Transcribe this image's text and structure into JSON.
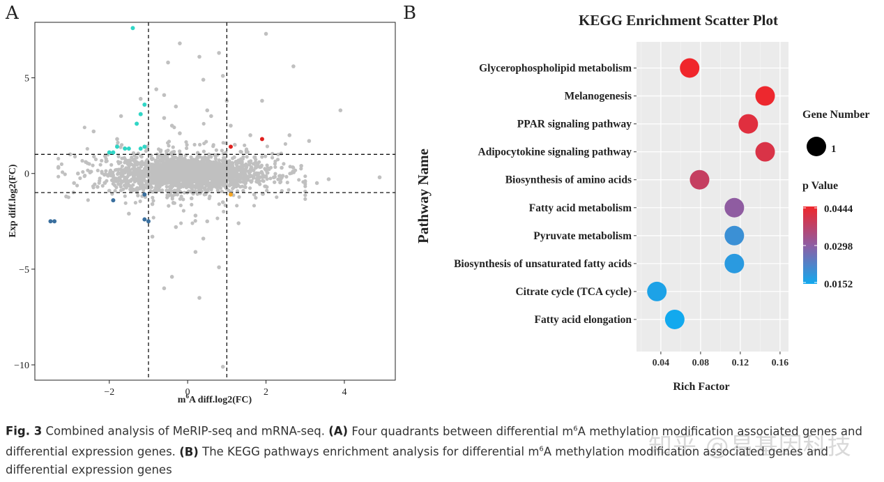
{
  "panel_a_letter": "A",
  "panel_b_letter": "B",
  "chart_data": [
    {
      "type": "scatter",
      "title": "",
      "xlabel_pre": "m",
      "xlabel_sup": "6",
      "xlabel_post": "A diff.log2(FC)",
      "ylabel": "Exp diff.log2(FC)",
      "xlim": [
        -3.9,
        5.3
      ],
      "ylim": [
        -10.8,
        7.9
      ],
      "xticks": [
        -2,
        0,
        2,
        4
      ],
      "yticks": [
        5,
        0,
        -5,
        -10
      ],
      "xtick_labels": [
        "−2",
        "0",
        "2",
        "4"
      ],
      "ytick_labels": [
        "5",
        "0",
        "−5",
        "−10"
      ],
      "thresholds": {
        "x": [
          -1,
          1
        ],
        "y": [
          -1,
          1
        ]
      },
      "colors": {
        "background": "#c0c0c0",
        "up_hypo": "#30d6c6",
        "down_hypo": "#3a6f9e",
        "up_hyper": "#e0201e",
        "down_hyper": "#f5a623"
      },
      "background_points": [
        [
          -0.2,
          6.8
        ],
        [
          0.3,
          6.1
        ],
        [
          -0.5,
          5.8
        ],
        [
          0.8,
          6.3
        ],
        [
          2.0,
          7.3
        ],
        [
          2.7,
          5.6
        ],
        [
          3.9,
          3.3
        ],
        [
          2.6,
          2.0
        ],
        [
          3.1,
          1.7
        ],
        [
          -2.4,
          2.2
        ],
        [
          1.9,
          3.8
        ],
        [
          1.0,
          3.8
        ],
        [
          -1.2,
          3.9
        ],
        [
          -0.8,
          4.4
        ],
        [
          0.4,
          4.9
        ],
        [
          -0.6,
          4.1
        ],
        [
          0.9,
          5.1
        ],
        [
          -1.7,
          3.0
        ],
        [
          0.2,
          -2.2
        ],
        [
          -0.3,
          -2.8
        ],
        [
          0.4,
          -3.4
        ],
        [
          -0.9,
          -3.3
        ],
        [
          0.2,
          -4.1
        ],
        [
          -0.4,
          -5.4
        ],
        [
          0.8,
          -4.9
        ],
        [
          -0.6,
          -6.0
        ],
        [
          0.3,
          -6.5
        ],
        [
          0.9,
          -10.1
        ],
        [
          1.3,
          -2.6
        ],
        [
          -1.5,
          -2.1
        ],
        [
          -3.1,
          -1.2
        ],
        [
          -3.0,
          1.0
        ],
        [
          -2.9,
          -0.5
        ],
        [
          3.3,
          -0.5
        ],
        [
          4.9,
          -0.2
        ],
        [
          3.6,
          -0.3
        ],
        [
          -3.3,
          0.3
        ],
        [
          2.9,
          0.4
        ],
        [
          -2.0,
          -0.9
        ],
        [
          1.7,
          -1.1
        ],
        [
          -2.6,
          0.6
        ],
        [
          1.5,
          1.2
        ],
        [
          0.6,
          3.0
        ],
        [
          -0.4,
          2.5
        ],
        [
          0.5,
          -2.5
        ],
        [
          -0.9,
          -1.6
        ],
        [
          0.9,
          -1.5
        ],
        [
          -1.8,
          1.8
        ],
        [
          1.1,
          2.5
        ],
        [
          -0.3,
          3.5
        ],
        [
          0.5,
          3.3
        ],
        [
          -0.6,
          2.9
        ],
        [
          2.2,
          -0.2
        ],
        [
          -2.3,
          -0.7
        ],
        [
          0.1,
          -1.3
        ],
        [
          -0.2,
          2.1
        ],
        [
          1.8,
          -0.4
        ],
        [
          2.4,
          0.3
        ],
        [
          -2.8,
          0.0
        ],
        [
          1.6,
          2.0
        ]
      ],
      "highlight_points": [
        {
          "x": -1.4,
          "y": 7.6,
          "group": "up_hypo"
        },
        {
          "x": -1.1,
          "y": 3.6,
          "group": "up_hypo"
        },
        {
          "x": -1.2,
          "y": 3.1,
          "group": "up_hypo"
        },
        {
          "x": -1.3,
          "y": 2.6,
          "group": "up_hypo"
        },
        {
          "x": -1.8,
          "y": 1.4,
          "group": "up_hypo"
        },
        {
          "x": -1.6,
          "y": 1.3,
          "group": "up_hypo"
        },
        {
          "x": -1.5,
          "y": 1.3,
          "group": "up_hypo"
        },
        {
          "x": -1.2,
          "y": 1.3,
          "group": "up_hypo"
        },
        {
          "x": -1.1,
          "y": 1.4,
          "group": "up_hypo"
        },
        {
          "x": -1.9,
          "y": 1.1,
          "group": "up_hypo"
        },
        {
          "x": -2.0,
          "y": 1.1,
          "group": "up_hypo"
        },
        {
          "x": -3.5,
          "y": -2.5,
          "group": "down_hypo"
        },
        {
          "x": -3.4,
          "y": -2.5,
          "group": "down_hypo"
        },
        {
          "x": -1.9,
          "y": -1.4,
          "group": "down_hypo"
        },
        {
          "x": -1.1,
          "y": -2.4,
          "group": "down_hypo"
        },
        {
          "x": -1.0,
          "y": -2.5,
          "group": "down_hypo"
        },
        {
          "x": -1.1,
          "y": -1.1,
          "group": "down_hypo"
        },
        {
          "x": 1.1,
          "y": 1.4,
          "group": "up_hyper"
        },
        {
          "x": 1.9,
          "y": 1.8,
          "group": "up_hyper"
        },
        {
          "x": 1.1,
          "y": -1.1,
          "group": "down_hyper"
        }
      ]
    },
    {
      "type": "scatter",
      "title": "KEGG Enrichment Scatter Plot",
      "xlabel": "Rich Factor",
      "ylabel": "Pathway Name",
      "xlim": [
        0.0155,
        0.1685
      ],
      "xticks": [
        0.04,
        0.08,
        0.12,
        0.16
      ],
      "xtick_labels": [
        "0.04",
        "0.08",
        "0.12",
        "0.16"
      ],
      "categories": [
        "Glycerophospholipid metabolism",
        "Melanogenesis",
        "PPAR signaling pathway",
        "Adipocytokine signaling pathway",
        "Biosynthesis of amino acids",
        "Fatty acid metabolism",
        "Pyruvate metabolism",
        "Biosynthesis of unsaturated fatty acids",
        "Citrate cycle (TCA cycle)",
        "Fatty acid elongation"
      ],
      "rich_factor": [
        0.069,
        0.145,
        0.128,
        0.145,
        0.079,
        0.114,
        0.114,
        0.114,
        0.036,
        0.054
      ],
      "p_value": [
        0.0444,
        0.044,
        0.042,
        0.041,
        0.038,
        0.03,
        0.02,
        0.018,
        0.0165,
        0.0152
      ],
      "gene_number": [
        1,
        1,
        1,
        1,
        1,
        1,
        1,
        1,
        1,
        1
      ],
      "legend": {
        "size_title": "Gene Number",
        "size_value": "1",
        "color_title": "p Value",
        "color_labels": [
          "0.0444",
          "0.0298",
          "0.0152"
        ],
        "color_min": 0.0152,
        "color_max": 0.0444,
        "color_low": "#12a9ee",
        "color_mid": "#8e5da3",
        "color_high": "#f0262b"
      }
    }
  ],
  "caption": {
    "fig_label": "Fig. 3",
    "text1_pre": "Combined analysis of MeRIP-seq and mRNA-seq.",
    "label_a": "(A)",
    "text_a_1": "Four quadrants between differential m",
    "sup_a": "6",
    "text_a_2": "A methylation modification associated genes and differential expression genes.",
    "label_b": "(B)",
    "text_b_1": "The KEGG pathways enrichment analysis for differential m",
    "sup_b": "6",
    "text_b_2": "A methylation modification associated genes and differential expression genes"
  },
  "watermark": "知乎 @易基因科技"
}
